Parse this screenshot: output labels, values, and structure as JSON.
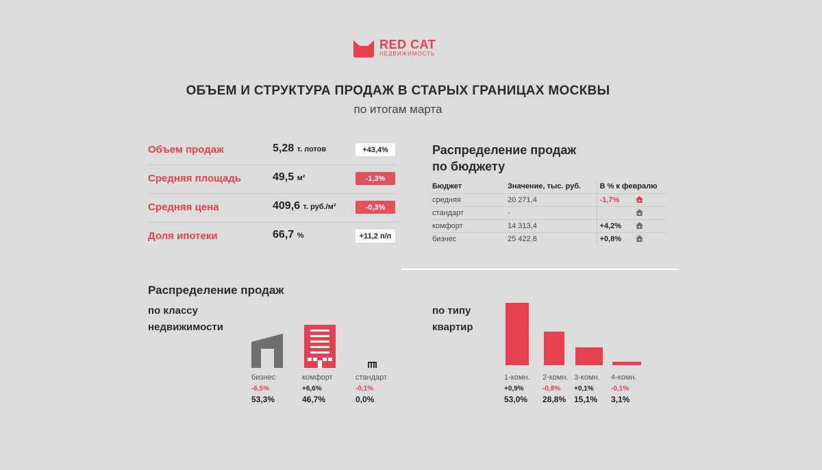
{
  "colors": {
    "accent": "#e4404f",
    "dark": "#6e6e6e",
    "background": "#dcdcdc"
  },
  "brand": {
    "name": "RED CAT",
    "tagline": "НЕДВИЖИМОСТЬ"
  },
  "header": {
    "title": "ОБЪЕМ И СТРУКТУРА ПРОДАЖ В СТАРЫХ ГРАНИЦАХ МОСКВЫ",
    "subtitle": "по итогам марта"
  },
  "kpis": [
    {
      "label": "Объем продаж",
      "value": "5,28",
      "unit": "т. лотов",
      "change": "+43,4%",
      "positive": true
    },
    {
      "label": "Средняя площадь",
      "value": "49,5",
      "unit": "м²",
      "change": "-1,3%",
      "positive": false
    },
    {
      "label": "Средняя цена",
      "value": "409,6",
      "unit": "т. руб./м²",
      "change": "-0,3%",
      "positive": false
    },
    {
      "label": "Доля ипотеки",
      "value": "66,7",
      "unit": "%",
      "change": "+11,2 п/п",
      "positive": true
    }
  ],
  "budget": {
    "title_line1": "Распределение продаж",
    "title_line2": "по бюджету",
    "headers": [
      "Бюджет",
      "Значение, тыс. руб.",
      "В % к февралю"
    ],
    "rows": [
      {
        "segment": "средняя",
        "value": "20 271,4",
        "change": "-1,7%",
        "positive": false,
        "icon": "house-icon-red"
      },
      {
        "segment": "стандарт",
        "value": "-",
        "change": "",
        "positive": true,
        "icon": "house-icon-gray"
      },
      {
        "segment": "комфорт",
        "value": "14 313,4",
        "change": "+4,2%",
        "positive": true,
        "icon": "house-icon-gray"
      },
      {
        "segment": "бизнес",
        "value": "25 422,8",
        "change": "+0,8%",
        "positive": true,
        "icon": "house-icon-gray"
      }
    ]
  },
  "distribution": {
    "title": "Распределение продаж",
    "by_class": {
      "line1": "по классу",
      "line2": "недвижимости",
      "items": [
        {
          "label": "бизнес",
          "change": "-6,5%",
          "share": "53,3%",
          "positive": false,
          "icon": "business-building-icon"
        },
        {
          "label": "комфорт",
          "change": "+6,6%",
          "share": "46,7%",
          "positive": true,
          "icon": "comfort-building-icon"
        },
        {
          "label": "стандарт",
          "change": "-0,1%",
          "share": "0,0%",
          "positive": false,
          "icon": "standard-building-icon"
        }
      ]
    },
    "by_type": {
      "line1": "по типу",
      "line2": "квартир"
    }
  },
  "chart_data": {
    "type": "bar",
    "categories": [
      "1-комн.",
      "2-комн.",
      "3-комн.",
      "4-комн."
    ],
    "values": [
      53.0,
      28.8,
      15.1,
      3.1
    ],
    "value_labels": [
      "53,0%",
      "28,8%",
      "15,1%",
      "3,1%"
    ],
    "changes": [
      "+0,9%",
      "-0,8%",
      "+0,1%",
      "-0,1%"
    ],
    "changes_positive": [
      true,
      false,
      true,
      false
    ],
    "title": "",
    "xlabel": "",
    "ylabel": "",
    "ylim": [
      0,
      53.0
    ]
  }
}
